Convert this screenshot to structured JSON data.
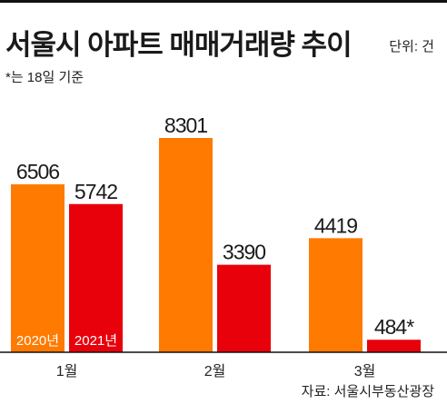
{
  "header": {
    "title": "서울시 아파트 매매거래량 추이",
    "unit": "단위: 건",
    "note": "*는 18일 기준"
  },
  "footer": {
    "source": "자료: 서울시부동산광장"
  },
  "colors": {
    "series_2020": "#ff7a00",
    "series_2021": "#e8000b",
    "rule": "#111111"
  },
  "chart_data": {
    "type": "bar",
    "categories": [
      "1월",
      "2월",
      "3월"
    ],
    "series": [
      {
        "name": "2020년",
        "values": [
          6506,
          8301,
          4419
        ],
        "labels": [
          "6506",
          "8301",
          "4419"
        ]
      },
      {
        "name": "2021년",
        "values": [
          5742,
          3390,
          484
        ],
        "labels": [
          "5742",
          "3390",
          "484*"
        ]
      }
    ],
    "title": "서울시 아파트 매매거래량 추이",
    "ylim": [
      0,
      8301
    ],
    "grid": false,
    "legend": "inside-bars"
  }
}
